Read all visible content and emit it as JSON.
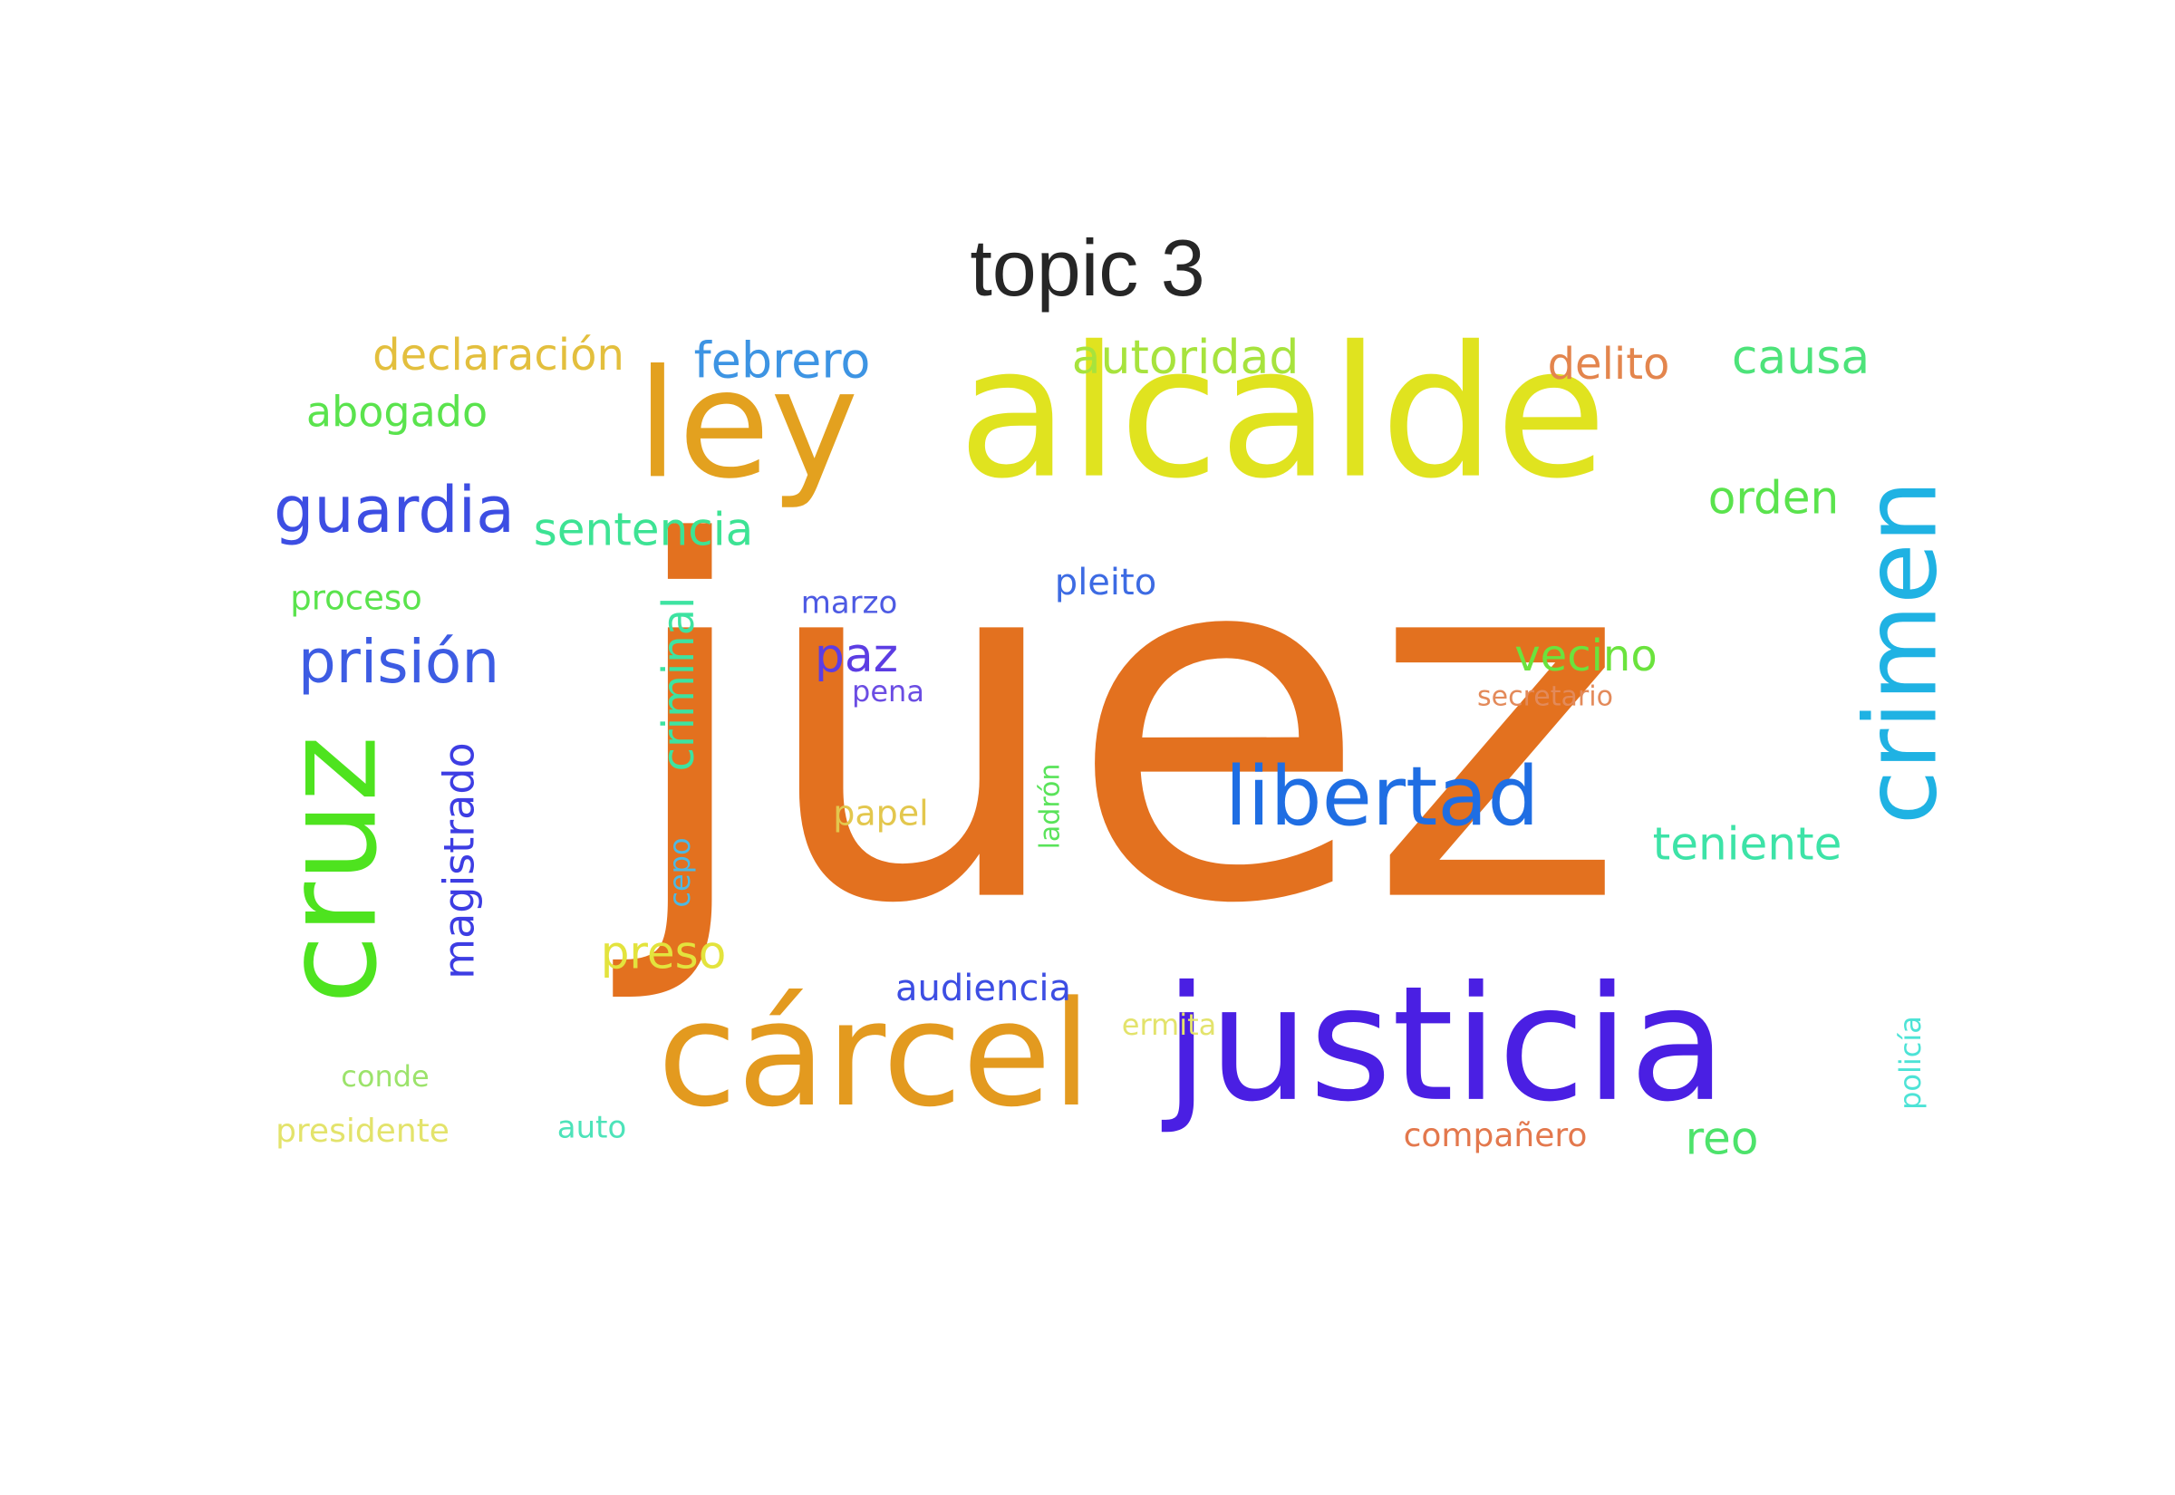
{
  "chart_data": {
    "type": "wordcloud",
    "title": "topic 3",
    "words": [
      {
        "text": "juez",
        "color": "#e3711f"
      },
      {
        "text": "alcalde",
        "color": "#e0e31f"
      },
      {
        "text": "justicia",
        "color": "#4a1fe3"
      },
      {
        "text": "cárcel",
        "color": "#e39a1f"
      },
      {
        "text": "crimen",
        "color": "#1fb2e3"
      },
      {
        "text": "ley",
        "color": "#e3a11f"
      },
      {
        "text": "cruz",
        "color": "#4ee31f"
      },
      {
        "text": "libertad",
        "color": "#1f6ee3"
      },
      {
        "text": "guardia",
        "color": "#3d4ee3"
      },
      {
        "text": "prisión",
        "color": "#3d5ce3"
      },
      {
        "text": "magistrado",
        "color": "#3d3de3"
      },
      {
        "text": "criminal",
        "color": "#3de3a1"
      },
      {
        "text": "sentencia",
        "color": "#3de394"
      },
      {
        "text": "autoridad",
        "color": "#a7e33d"
      },
      {
        "text": "declaración",
        "color": "#e3bf3d"
      },
      {
        "text": "febrero",
        "color": "#3d94e3"
      },
      {
        "text": "delito",
        "color": "#e3854d"
      },
      {
        "text": "causa",
        "color": "#4de37a"
      },
      {
        "text": "orden",
        "color": "#5ae34d"
      },
      {
        "text": "abogado",
        "color": "#5ae34d"
      },
      {
        "text": "vecino",
        "color": "#6be33d"
      },
      {
        "text": "teniente",
        "color": "#3de3a7"
      },
      {
        "text": "preso",
        "color": "#e3e33d"
      },
      {
        "text": "paz",
        "color": "#5c3de3"
      },
      {
        "text": "pleito",
        "color": "#3d6be3"
      },
      {
        "text": "audiencia",
        "color": "#3d4ee3"
      },
      {
        "text": "proceso",
        "color": "#5ae34d"
      },
      {
        "text": "papel",
        "color": "#e3c74d"
      },
      {
        "text": "marzo",
        "color": "#4d5ae3"
      },
      {
        "text": "pena",
        "color": "#6b4de3"
      },
      {
        "text": "secretario",
        "color": "#e38a5a"
      },
      {
        "text": "cepo",
        "color": "#4db9e3"
      },
      {
        "text": "ladrón",
        "color": "#5ae35a"
      },
      {
        "text": "ermita",
        "color": "#e3e36b"
      },
      {
        "text": "compañero",
        "color": "#e3784d"
      },
      {
        "text": "reo",
        "color": "#4de36b"
      },
      {
        "text": "policía",
        "color": "#4de3d6"
      },
      {
        "text": "conde",
        "color": "#9ce36b"
      },
      {
        "text": "presidente",
        "color": "#e3e36b"
      },
      {
        "text": "auto",
        "color": "#4de3b9"
      }
    ]
  }
}
